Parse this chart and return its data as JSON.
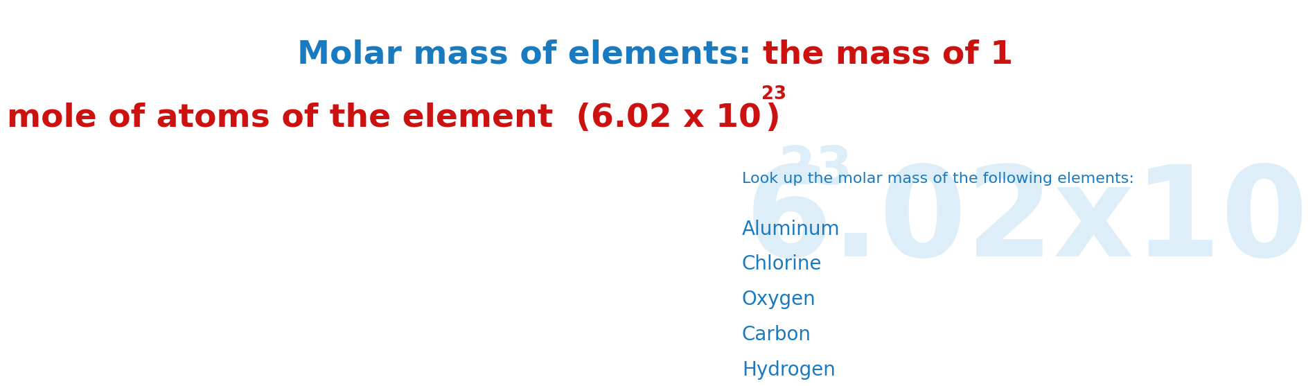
{
  "bg_color": "#ffffff",
  "blue_color": "#1a7abf",
  "red_color": "#cc1111",
  "watermark_color": "#ddeef8",
  "title_fontsize": 34,
  "subtitle_fontsize": 16,
  "element_fontsize": 20,
  "subtitle": "Look up the molar mass of the following elements:",
  "elements": [
    "Aluminum",
    "Chlorine",
    "Oxygen",
    "Carbon",
    "Hydrogen"
  ],
  "watermark_text": "6.02x10",
  "watermark_sup": "23",
  "watermark_fontsize": 130,
  "watermark_sup_fontsize": 55
}
